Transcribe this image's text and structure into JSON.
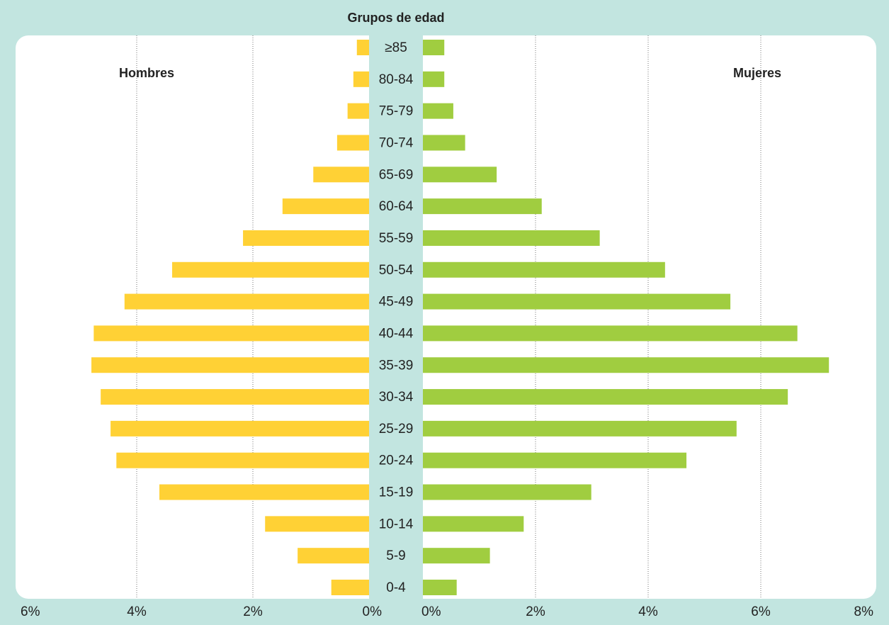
{
  "chart_data": [
    {
      "type": "bar",
      "orientation": "horizontal",
      "x_reversed": true,
      "title": "Grupos de edad",
      "categories": [
        "≥85",
        "80-84",
        "75-79",
        "70-74",
        "65-69",
        "60-64",
        "55-59",
        "50-54",
        "45-49",
        "40-44",
        "35-39",
        "30-34",
        "25-29",
        "20-24",
        "15-19",
        "10-14",
        "5-9",
        "0-4"
      ],
      "series": [
        {
          "name": "Hombres",
          "color": "#ffd135",
          "values": [
            0.21,
            0.27,
            0.37,
            0.55,
            0.96,
            1.49,
            2.17,
            3.39,
            4.21,
            4.74,
            4.78,
            4.62,
            4.45,
            4.35,
            3.61,
            1.79,
            1.23,
            0.65
          ]
        }
      ],
      "xlim": [
        0,
        6
      ],
      "xticks": [
        {
          "value": 6,
          "label": "6%"
        },
        {
          "value": 4,
          "label": "4%"
        },
        {
          "value": 2,
          "label": "2%"
        },
        {
          "value": 0,
          "label": "0%"
        }
      ],
      "grid": true
    },
    {
      "type": "bar",
      "orientation": "horizontal",
      "x_reversed": false,
      "series": [
        {
          "name": "Mujeres",
          "color": "#a0cd40",
          "values": [
            0.38,
            0.38,
            0.54,
            0.75,
            1.31,
            2.11,
            3.14,
            4.3,
            5.46,
            6.65,
            7.21,
            6.48,
            5.57,
            4.68,
            2.99,
            1.79,
            1.19,
            0.6
          ]
        }
      ],
      "xlim": [
        0,
        8
      ],
      "xticks": [
        {
          "value": 0,
          "label": "0%"
        },
        {
          "value": 2,
          "label": "2%"
        },
        {
          "value": 4,
          "label": "4%"
        },
        {
          "value": 6,
          "label": "6%"
        },
        {
          "value": 8,
          "label": "8%"
        }
      ],
      "grid": true
    }
  ]
}
